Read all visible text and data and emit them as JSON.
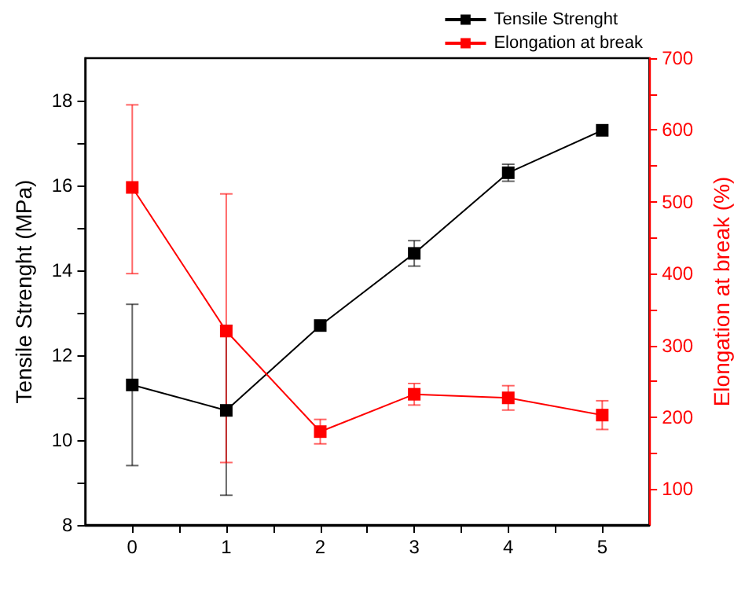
{
  "chart_data": {
    "type": "line",
    "ylabel": "Tensile Strenght (MPa)",
    "y2label": "Elongation at break (%)",
    "x": [
      0,
      1,
      2,
      3,
      4,
      5
    ],
    "xlim": [
      -0.5,
      5.5
    ],
    "xticks": [
      0,
      {
        "value": 0.5,
        "label": null
      },
      1,
      {
        "value": 1.5,
        "label": null
      },
      2,
      {
        "value": 2.5,
        "label": null
      },
      3,
      {
        "value": 3.5,
        "label": null
      },
      4,
      {
        "value": 4.5,
        "label": null
      },
      5
    ],
    "ylim": [
      8,
      19
    ],
    "yticks": [
      8,
      {
        "value": 9,
        "label": null
      },
      10,
      {
        "value": 11,
        "label": null
      },
      12,
      {
        "value": 13,
        "label": null
      },
      14,
      {
        "value": 15,
        "label": null
      },
      16,
      {
        "value": 17,
        "label": null
      },
      18
    ],
    "y2lim": [
      50,
      700
    ],
    "y2ticks": [
      100,
      {
        "value": 150,
        "label": null
      },
      200,
      {
        "value": 250,
        "label": null
      },
      300,
      {
        "value": 350,
        "label": null
      },
      400,
      {
        "value": 450,
        "label": null
      },
      500,
      {
        "value": 550,
        "label": null
      },
      600,
      {
        "value": 650,
        "label": null
      },
      700
    ],
    "series": [
      {
        "name": "Tensile Strenght",
        "color": "#000000",
        "values": [
          11.3,
          10.7,
          12.7,
          14.4,
          16.3,
          17.3
        ],
        "errors": [
          1.9,
          2.0,
          null,
          0.3,
          0.2,
          null
        ]
      },
      {
        "name": "Elongation at break",
        "color": "#ff0000",
        "axis": "y2",
        "values": [
          520,
          320,
          180,
          232,
          227,
          203
        ],
        "errors": [
          [
            400,
            635
          ],
          [
            137,
            511
          ],
          17,
          15,
          17,
          20
        ]
      }
    ],
    "marker": "square",
    "line_style": "solid",
    "legend": "top right",
    "grid": false
  }
}
